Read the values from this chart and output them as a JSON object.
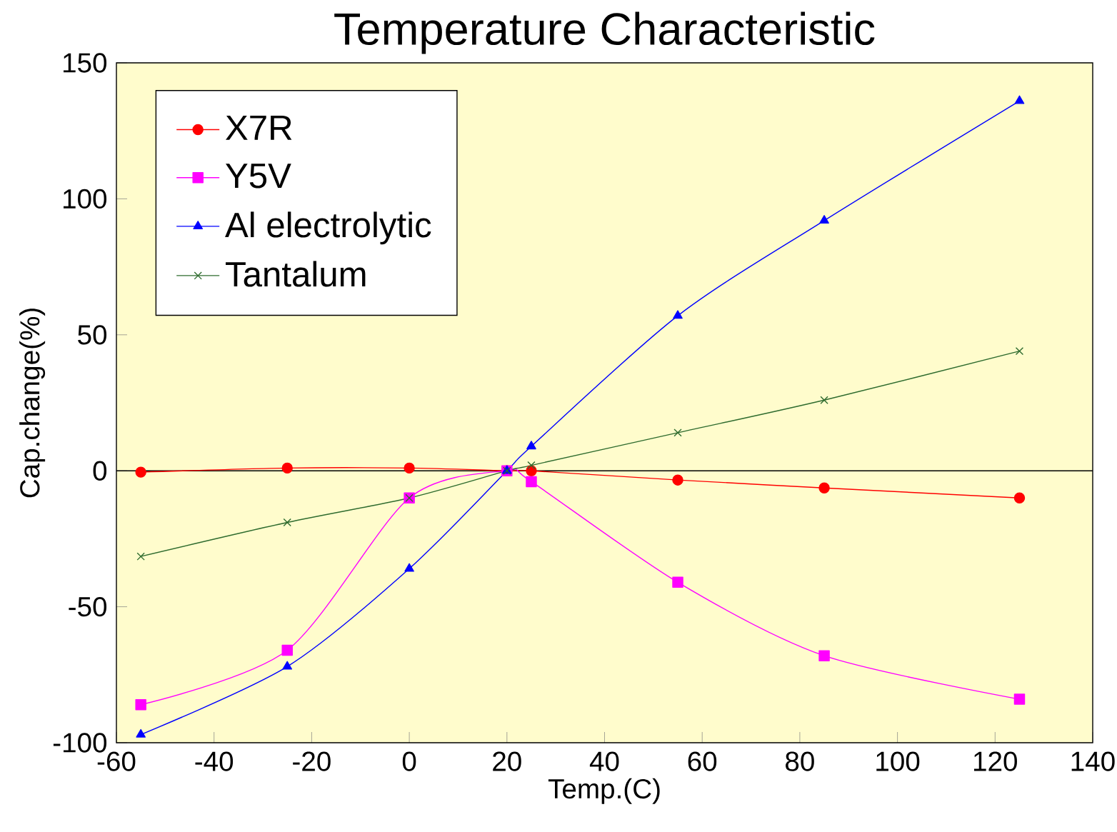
{
  "chart_data": {
    "type": "line",
    "title": "Temperature Characteristic",
    "xlabel": "Temp.(C)",
    "ylabel": "Cap.change(%)",
    "x": [
      -55,
      -25,
      0,
      20,
      25,
      55,
      85,
      125
    ],
    "series": [
      {
        "name": "X7R",
        "color": "#ff0000",
        "marker": "circle",
        "values": [
          -0.5,
          1,
          1,
          0,
          0,
          -3.4,
          -6.3,
          -10
        ]
      },
      {
        "name": "Y5V",
        "color": "#ff00ff",
        "marker": "square",
        "values": [
          -86,
          -66,
          -10,
          0,
          -4,
          -41,
          -68,
          -84
        ]
      },
      {
        "name": "Al electrolytic",
        "color": "#0000ff",
        "marker": "triangle",
        "values": [
          -97,
          -72,
          -36,
          0,
          9,
          57,
          92,
          136
        ]
      },
      {
        "name": "Tantalum",
        "color": "#2e6b2e",
        "marker": "cross",
        "values": [
          -31.5,
          -19,
          -10,
          0,
          2,
          14,
          26,
          44
        ]
      }
    ],
    "xlim": [
      -60,
      140
    ],
    "ylim": [
      -100,
      150
    ],
    "xticks": [
      -60,
      -40,
      -20,
      0,
      20,
      40,
      60,
      80,
      100,
      120,
      140
    ],
    "yticks": [
      -100,
      -50,
      0,
      50,
      100,
      150
    ],
    "ref_lines": [
      {
        "axis": "y",
        "value": 0,
        "color": "#000000"
      }
    ],
    "grid": false,
    "legend": "top left",
    "line_style": "solid"
  }
}
